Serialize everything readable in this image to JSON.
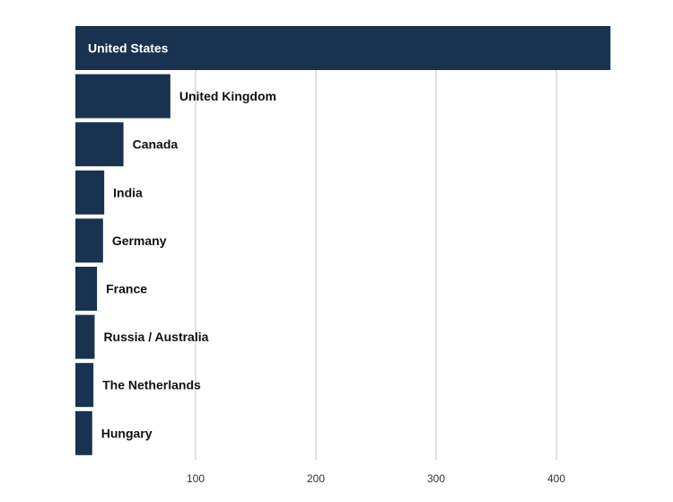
{
  "colors": {
    "bar": "#18324f",
    "label_inside": "#ffffff",
    "label_outside": "#111111",
    "grid": "#d9d9d9"
  },
  "chart_data": {
    "type": "bar",
    "orientation": "horizontal",
    "title": "",
    "xlabel": "",
    "ylabel": "",
    "grid": true,
    "legend": "none",
    "xlim": [
      0,
      450
    ],
    "xticks": [
      100,
      200,
      300,
      400
    ],
    "categories": [
      "United States",
      "United Kingdom",
      "Canada",
      "India",
      "Germany",
      "France",
      "Russia / Australia",
      "The Netherlands",
      "Hungary"
    ],
    "values": [
      445,
      79,
      40,
      24,
      23,
      18,
      16,
      15,
      14
    ]
  }
}
